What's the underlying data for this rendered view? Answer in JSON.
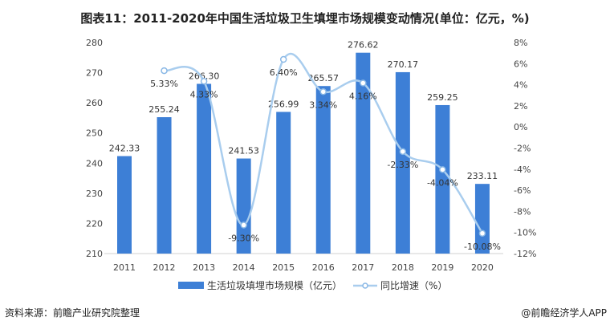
{
  "title": "图表11：2011-2020年中国生活垃圾卫生填埋市场规模变动情况(单位：亿元，%)",
  "source": "资料来源：前瞻产业研究院整理",
  "brand": "@前瞻经济学人APP",
  "chart_data": {
    "type": "bar+line",
    "categories": [
      "2011",
      "2012",
      "2013",
      "2014",
      "2015",
      "2016",
      "2017",
      "2018",
      "2019",
      "2020"
    ],
    "series": [
      {
        "name": "生活垃圾填埋市场规模（亿元）",
        "type": "bar",
        "axis": "left",
        "color": "#3d7fd6",
        "values": [
          242.33,
          255.24,
          266.3,
          241.53,
          256.99,
          265.57,
          276.62,
          270.17,
          259.25,
          233.11
        ],
        "labels": [
          "242.33",
          "255.24",
          "266.30",
          "241.53",
          "256.99",
          "265.57",
          "276.62",
          "270.17",
          "259.25",
          "233.11"
        ]
      },
      {
        "name": "同比增速（%）",
        "type": "line",
        "axis": "right",
        "color": "#a9cdee",
        "smooth": true,
        "values": [
          null,
          5.33,
          4.33,
          -9.3,
          6.4,
          3.34,
          4.16,
          -2.33,
          -4.04,
          -10.08
        ],
        "labels": [
          "",
          "5.33%",
          "4.33%",
          "-9.30%",
          "6.40%",
          "3.34%",
          "4.16%",
          "-2.33%",
          "-4.04%",
          "-10.08%"
        ]
      }
    ],
    "left_axis": {
      "ylim": [
        210,
        280
      ],
      "ticks": [
        "210",
        "220",
        "230",
        "240",
        "250",
        "260",
        "270",
        "280"
      ]
    },
    "right_axis": {
      "ylim": [
        -12,
        8
      ],
      "ticks": [
        "-12%",
        "-10%",
        "-8%",
        "-6%",
        "-4%",
        "-2%",
        "0%",
        "2%",
        "4%",
        "6%",
        "8%"
      ]
    },
    "grid": false,
    "legend_placement": "bottom"
  }
}
